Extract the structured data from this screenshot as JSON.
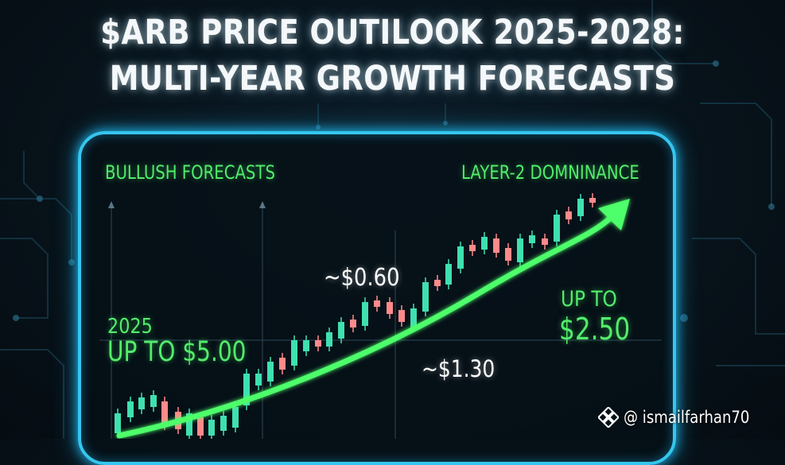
{
  "title": {
    "line1": "$ARB PRICE OUTILOOK 2025-2028:",
    "line2": "MULTI-YEAR GROWTH FORECASTS"
  },
  "panel": {
    "bullish_label": "BULLUSH FORECASTS",
    "layer2_label": "LAYER-2 DOMNINANCE",
    "price_060": "~$0.60",
    "year_2025": "2025",
    "up_to_500": "UP TO $5.00",
    "price_130": "~$1.30",
    "up_to": "UP TO",
    "price_250": "$2.50"
  },
  "watermark": {
    "logo_icon": "binance-diamond-logo",
    "handle": "@ ismailfarhan70"
  },
  "colors": {
    "accent_green": "#53ec6b",
    "panel_border": "#35c6ee",
    "candle_up": "#3fe0b0",
    "candle_down": "#ff8a8a"
  }
}
